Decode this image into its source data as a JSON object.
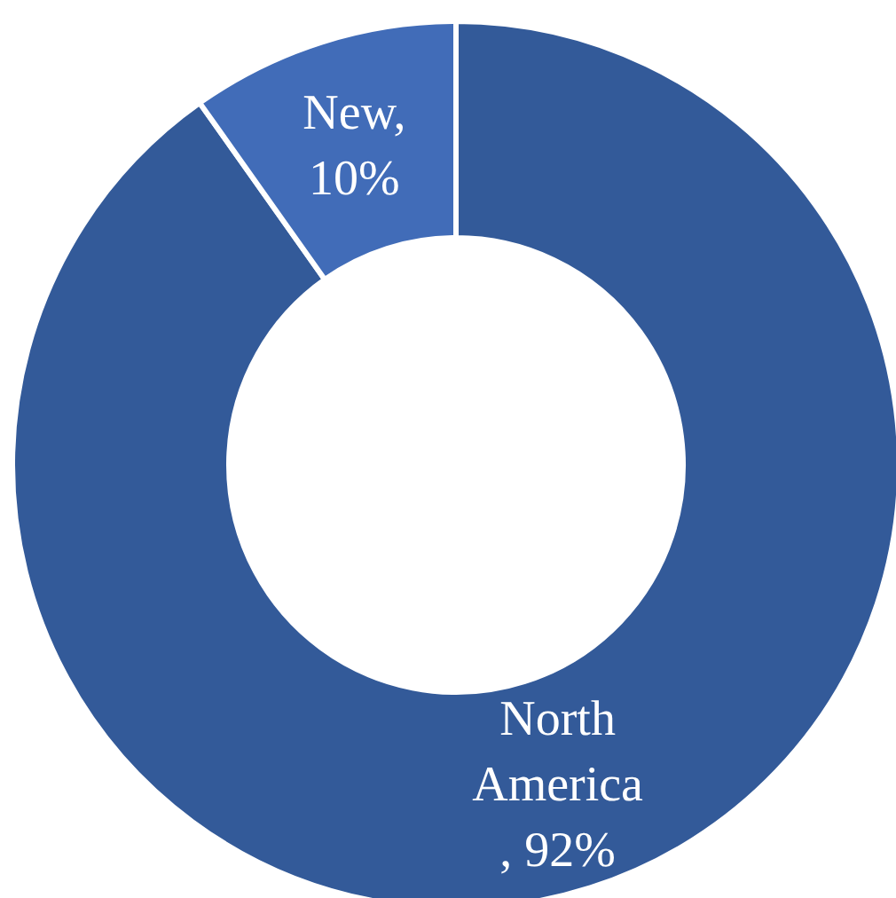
{
  "chart_data": {
    "type": "donut",
    "categories": [
      "North America",
      "New"
    ],
    "values": [
      92,
      10
    ],
    "value_labels": [
      ", 92%",
      ", 10%"
    ],
    "colors": [
      "#335a99",
      "#416cb8"
    ],
    "legend": false
  }
}
